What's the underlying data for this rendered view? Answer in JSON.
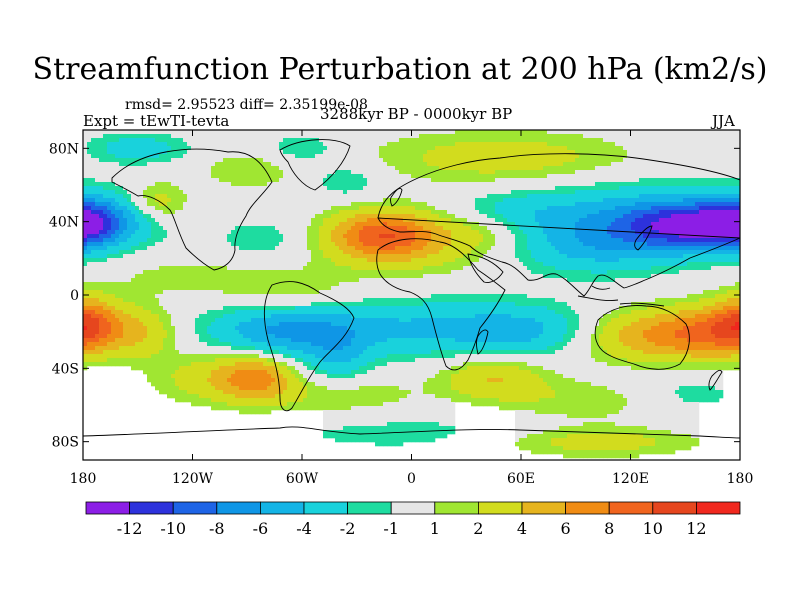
{
  "title": "Streamfunction Perturbation at 200 hPa (km2/s)",
  "stats": "rmsd= 2.95523  diff= 2.35199e-08",
  "experiment": "Expt = tEwTI-tevta",
  "period": "3288kyr BP - 0000kyr BP",
  "season": "JJA",
  "map": {
    "projection": "Cylindrical Equidistant",
    "lat_labels": [
      "80N",
      "40N",
      "0",
      "40S",
      "80S"
    ],
    "lat_values": [
      80,
      40,
      0,
      -40,
      -80
    ],
    "lon_labels": [
      "180",
      "120W",
      "60W",
      "0",
      "60E",
      "120E",
      "180"
    ],
    "lon_values": [
      -180,
      -120,
      -60,
      0,
      60,
      120,
      180
    ]
  },
  "colorbar": {
    "labels": [
      "-12",
      "-10",
      "-8",
      "-6",
      "-4",
      "-2",
      "-1",
      "1",
      "2",
      "4",
      "6",
      "8",
      "10",
      "12"
    ],
    "colors": [
      "#8c1ee6",
      "#2d32dc",
      "#1e64e6",
      "#0f96e6",
      "#14b4e6",
      "#19d2dc",
      "#1edca0",
      "#e6e6e6",
      "#a0e632",
      "#d2dc1e",
      "#e6b41e",
      "#f08c14",
      "#f0641e",
      "#e6461e",
      "#f0281e"
    ]
  },
  "chart_data": {
    "type": "heatmap",
    "title": "Streamfunction Perturbation at 200 hPa (km2/s)",
    "variable": "streamfunction perturbation",
    "units": "km2/s",
    "level": "200 hPa",
    "season": "JJA",
    "x_range": [
      -180,
      180
    ],
    "y_range": [
      -90,
      90
    ],
    "contour_levels": [
      -12,
      -10,
      -8,
      -6,
      -4,
      -2,
      -1,
      1,
      2,
      4,
      6,
      8,
      10,
      12
    ],
    "features": [
      {
        "lon": 160,
        "lat": 38,
        "sx": 28,
        "sy": 9,
        "v": -11
      },
      {
        "lon": 120,
        "lat": 40,
        "sx": 40,
        "sy": 14,
        "v": -5
      },
      {
        "lon": 95,
        "lat": 25,
        "sx": 30,
        "sy": 10,
        "v": -3
      },
      {
        "lon": -178,
        "lat": 40,
        "sx": 14,
        "sy": 10,
        "v": -5.5
      },
      {
        "lon": -150,
        "lat": 45,
        "sx": 16,
        "sy": 10,
        "v": -2
      },
      {
        "lon": -150,
        "lat": 80,
        "sx": 20,
        "sy": 6,
        "v": -3
      },
      {
        "lon": -90,
        "lat": 68,
        "sx": 18,
        "sy": 7,
        "v": 2
      },
      {
        "lon": -60,
        "lat": 80,
        "sx": 15,
        "sy": 6,
        "v": -2
      },
      {
        "lon": -80,
        "lat": 30,
        "sx": 20,
        "sy": 9,
        "v": -2
      },
      {
        "lon": -15,
        "lat": 33,
        "sx": 20,
        "sy": 9,
        "v": 7.5
      },
      {
        "lon": -5,
        "lat": 28,
        "sx": 38,
        "sy": 12,
        "v": 3
      },
      {
        "lon": 40,
        "lat": 35,
        "sx": 18,
        "sy": 8,
        "v": 2
      },
      {
        "lon": 50,
        "lat": 75,
        "sx": 50,
        "sy": 10,
        "v": 3
      },
      {
        "lon": -140,
        "lat": 50,
        "sx": 12,
        "sy": 8,
        "v": 4
      },
      {
        "lon": -35,
        "lat": 62,
        "sx": 14,
        "sy": 7,
        "v": -2
      },
      {
        "lon": 55,
        "lat": 45,
        "sx": 25,
        "sy": 8,
        "v": -2.5
      },
      {
        "lon": -120,
        "lat": 10,
        "sx": 35,
        "sy": 8,
        "v": 1.5
      },
      {
        "lon": -65,
        "lat": 0,
        "sx": 25,
        "sy": 8,
        "v": 2
      },
      {
        "lon": -150,
        "lat": -20,
        "sx": 15,
        "sy": 10,
        "v": 4
      },
      {
        "lon": -178,
        "lat": -15,
        "sx": 12,
        "sy": 10,
        "v": 7
      },
      {
        "lon": -70,
        "lat": -20,
        "sx": 28,
        "sy": 10,
        "v": -5
      },
      {
        "lon": 5,
        "lat": -18,
        "sx": 60,
        "sy": 11,
        "v": -4
      },
      {
        "lon": 65,
        "lat": -20,
        "sx": 28,
        "sy": 9,
        "v": -3
      },
      {
        "lon": -40,
        "lat": -35,
        "sx": 12,
        "sy": 10,
        "v": -3
      },
      {
        "lon": 130,
        "lat": -22,
        "sx": 30,
        "sy": 10,
        "v": 6
      },
      {
        "lon": 165,
        "lat": -20,
        "sx": 20,
        "sy": 10,
        "v": 5
      },
      {
        "lon": -110,
        "lat": -45,
        "sx": 22,
        "sy": 10,
        "v": 3
      },
      {
        "lon": -85,
        "lat": -45,
        "sx": 14,
        "sy": 9,
        "v": 6
      },
      {
        "lon": -40,
        "lat": -55,
        "sx": 30,
        "sy": 8,
        "v": 2
      },
      {
        "lon": 45,
        "lat": -45,
        "sx": 20,
        "sy": 8,
        "v": 4
      },
      {
        "lon": 100,
        "lat": -58,
        "sx": 40,
        "sy": 8,
        "v": 2
      },
      {
        "lon": 150,
        "lat": -55,
        "sx": 25,
        "sy": 9,
        "v": -2
      },
      {
        "lon": 0,
        "lat": -75,
        "sx": 60,
        "sy": 8,
        "v": -1.5
      },
      {
        "lon": 100,
        "lat": -80,
        "sx": 40,
        "sy": 6,
        "v": 3
      }
    ]
  }
}
